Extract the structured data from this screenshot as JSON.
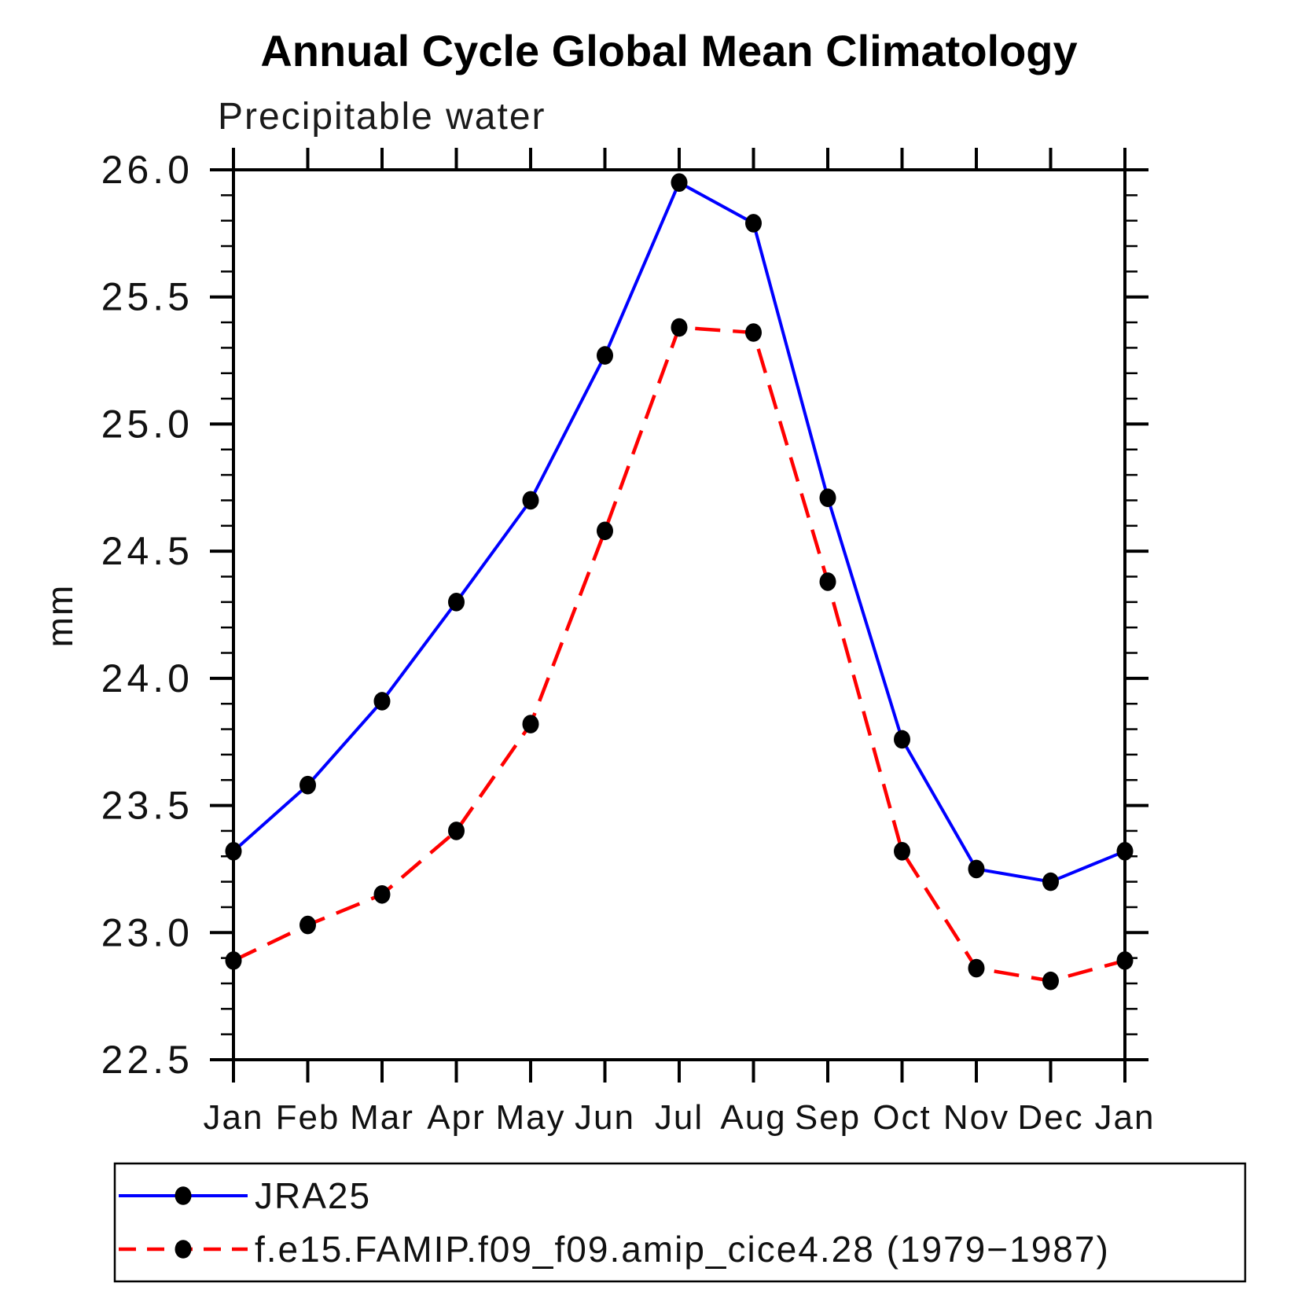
{
  "page": {
    "background": "#ffffff"
  },
  "chart_data": {
    "type": "line",
    "title": "Annual Cycle Global Mean Climatology",
    "subtitle": "Precipitable water",
    "ylabel": "mm",
    "categories": [
      "Jan",
      "Feb",
      "Mar",
      "Apr",
      "May",
      "Jun",
      "Jul",
      "Aug",
      "Sep",
      "Oct",
      "Nov",
      "Dec",
      "Jan"
    ],
    "ylim": [
      22.5,
      26.0
    ],
    "ytick_major_step": 0.5,
    "ytick_minor_step": 0.1,
    "ytick_labels": [
      "22.5",
      "23.0",
      "23.5",
      "24.0",
      "24.5",
      "25.0",
      "25.5",
      "26.0"
    ],
    "grid": false,
    "legend_position": "bottom-left-box",
    "axis_color": "#000000",
    "marker_color": "#000000",
    "series": [
      {
        "name": "JRA25",
        "color": "#0000ff",
        "line_style": "solid",
        "marker": "filled-black-circle",
        "values": [
          23.32,
          23.58,
          23.91,
          24.3,
          24.7,
          25.27,
          25.95,
          25.79,
          24.71,
          23.76,
          23.25,
          23.2,
          23.32
        ]
      },
      {
        "name": "f.e15.FAMIP.f09_f09.amip_cice4.28 (1979−1987)",
        "color": "#ff0000",
        "line_style": "dashed",
        "marker": "filled-black-circle",
        "values": [
          22.89,
          23.03,
          23.15,
          23.4,
          23.82,
          24.58,
          25.38,
          25.36,
          24.38,
          23.32,
          22.86,
          22.81,
          22.89
        ]
      }
    ]
  }
}
